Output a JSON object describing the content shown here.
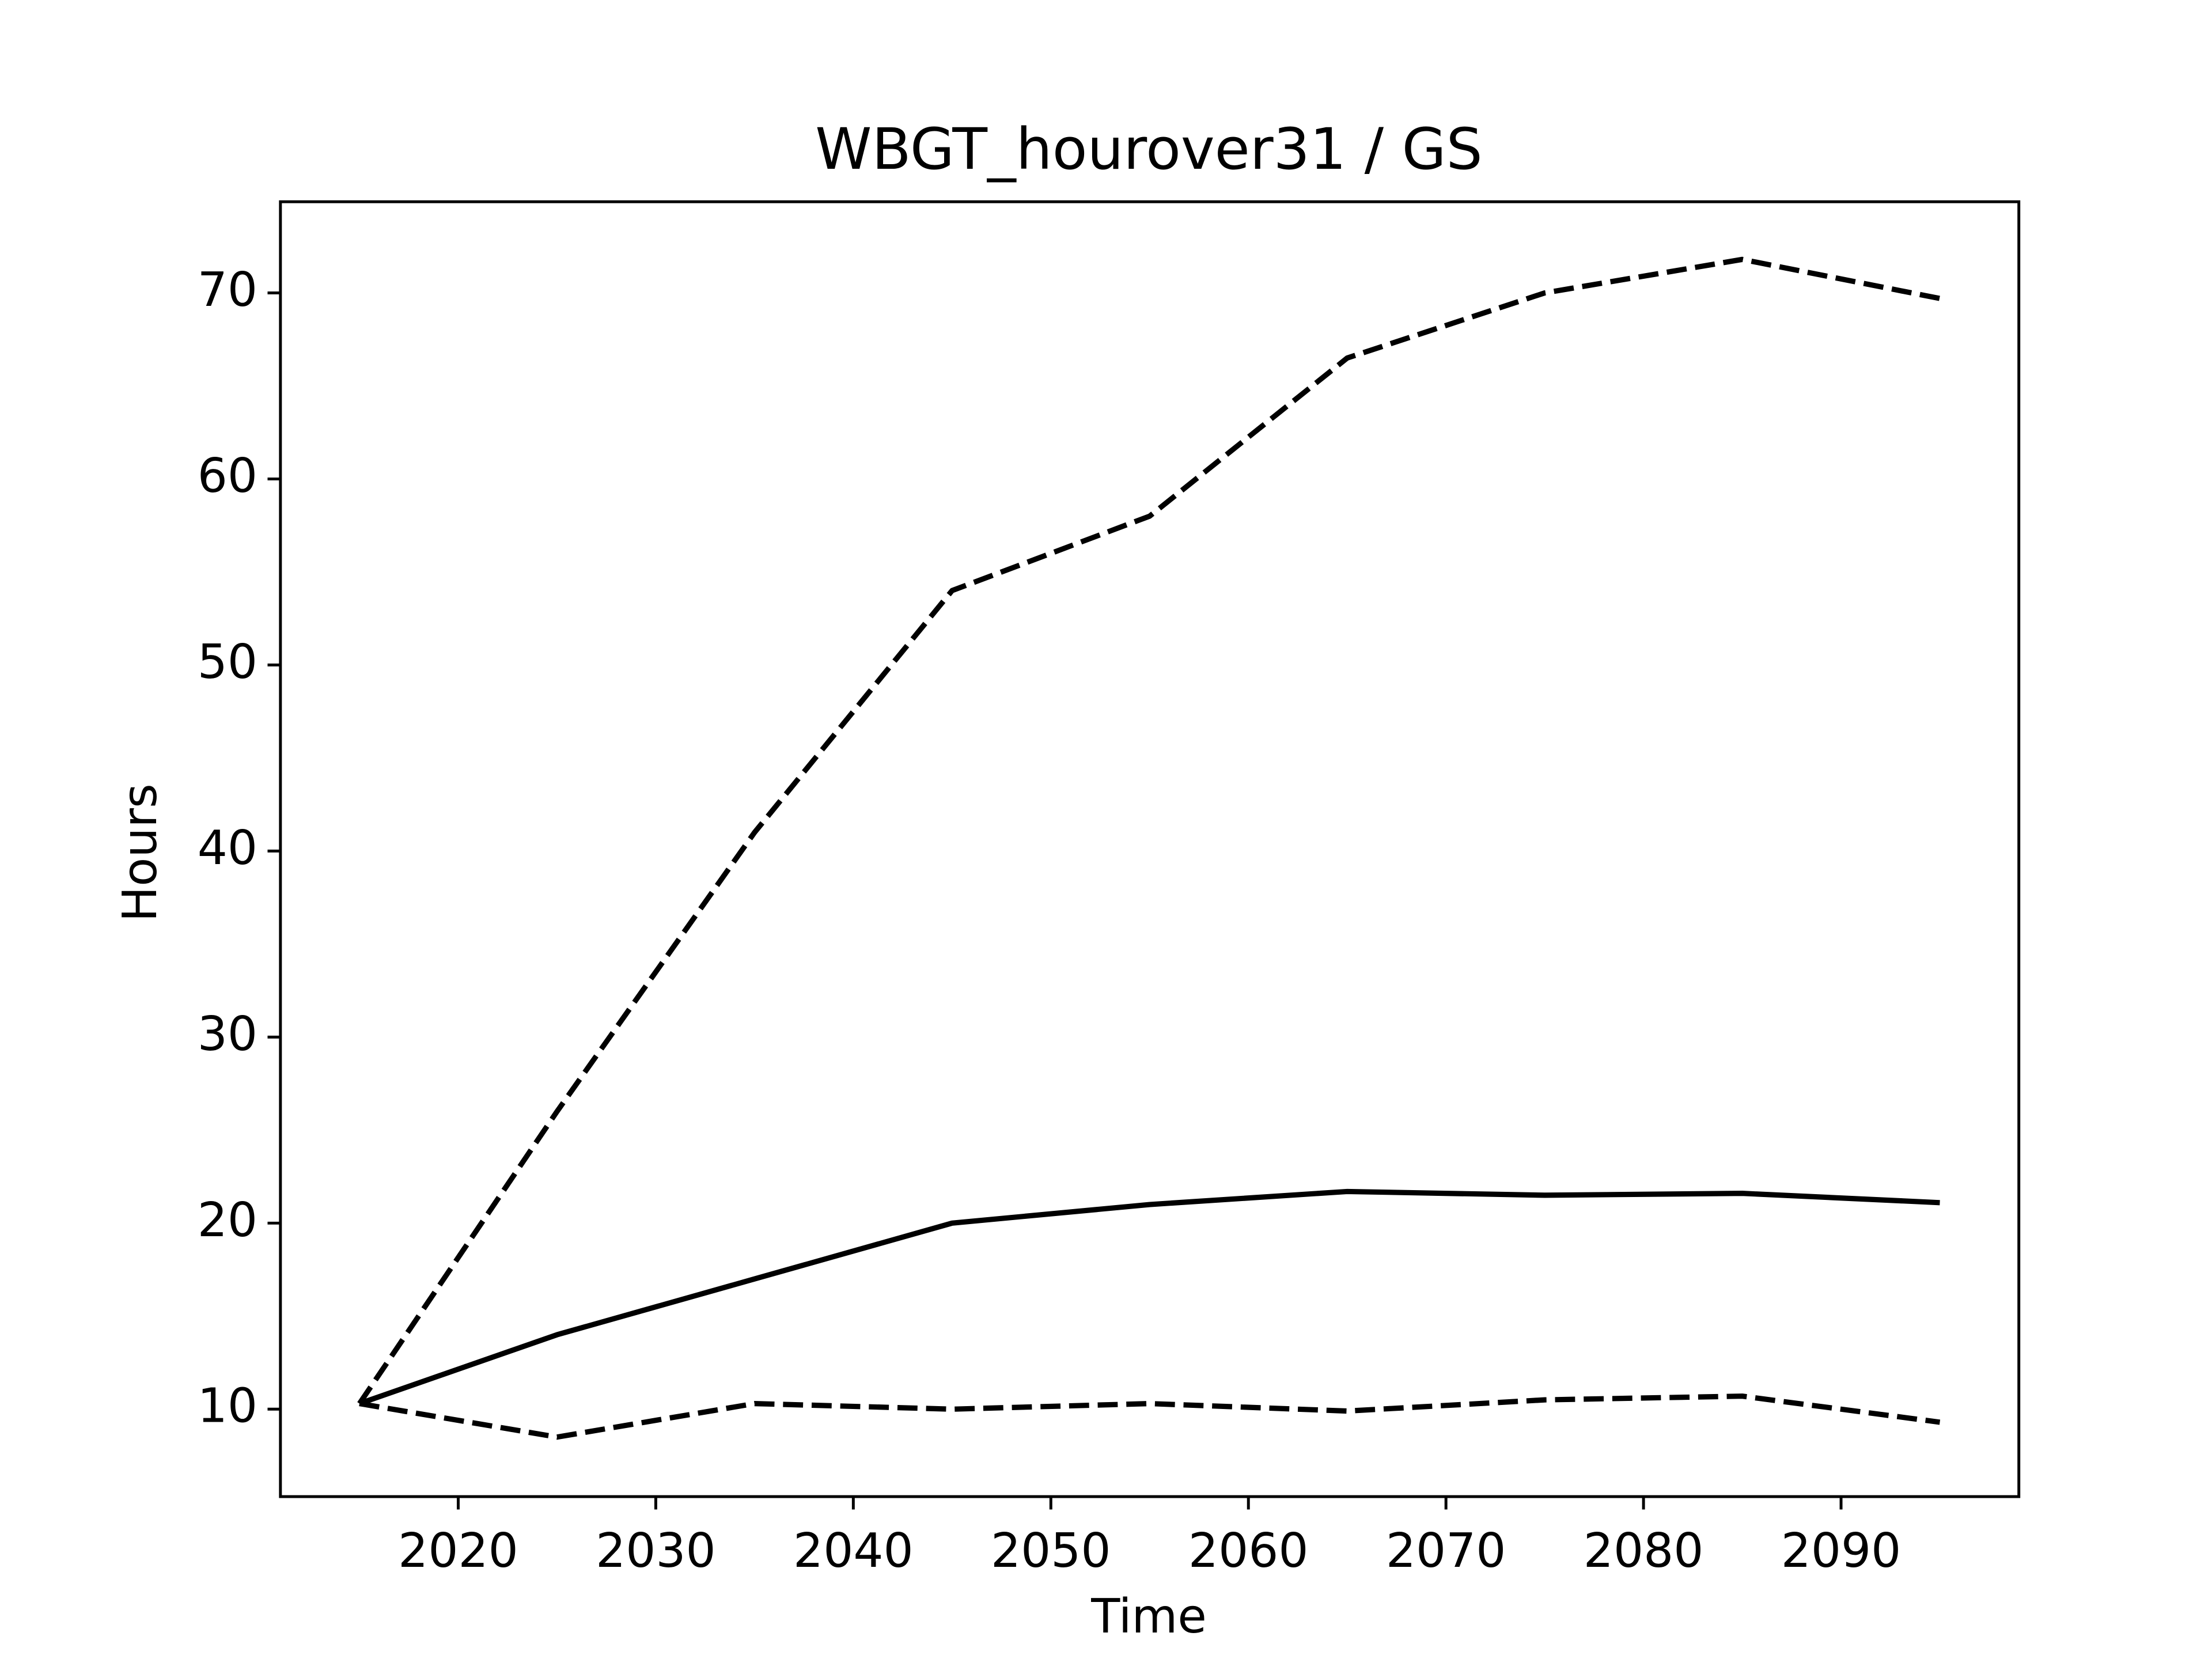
{
  "chart_data": {
    "type": "line",
    "title": "WBGT_hourover31 / GS",
    "xlabel": "Time",
    "ylabel": "Hours",
    "x": [
      2015,
      2025,
      2035,
      2045,
      2055,
      2065,
      2075,
      2085,
      2095
    ],
    "series": [
      {
        "color": "#000000",
        "linestyle": "solid",
        "values": [
          10.3,
          14.0,
          17.0,
          20.0,
          21.0,
          21.7,
          21.5,
          21.6,
          21.1
        ]
      },
      {
        "color": "#000000",
        "linestyle": "dashed",
        "values": [
          10.3,
          26.0,
          41.0,
          54.0,
          58.0,
          66.5,
          70.0,
          71.8,
          69.7
        ]
      },
      {
        "color": "#000000",
        "linestyle": "dashed",
        "values": [
          10.3,
          8.5,
          10.3,
          10.0,
          10.3,
          9.9,
          10.5,
          10.7,
          9.3
        ]
      }
    ],
    "xlim": [
      2011,
      2099
    ],
    "xticks": [
      2020,
      2030,
      2040,
      2050,
      2060,
      2070,
      2080,
      2090
    ],
    "ylim": [
      5.3,
      74.9
    ],
    "yticks": [
      10,
      20,
      30,
      40,
      50,
      60,
      70
    ],
    "grid": false
  }
}
